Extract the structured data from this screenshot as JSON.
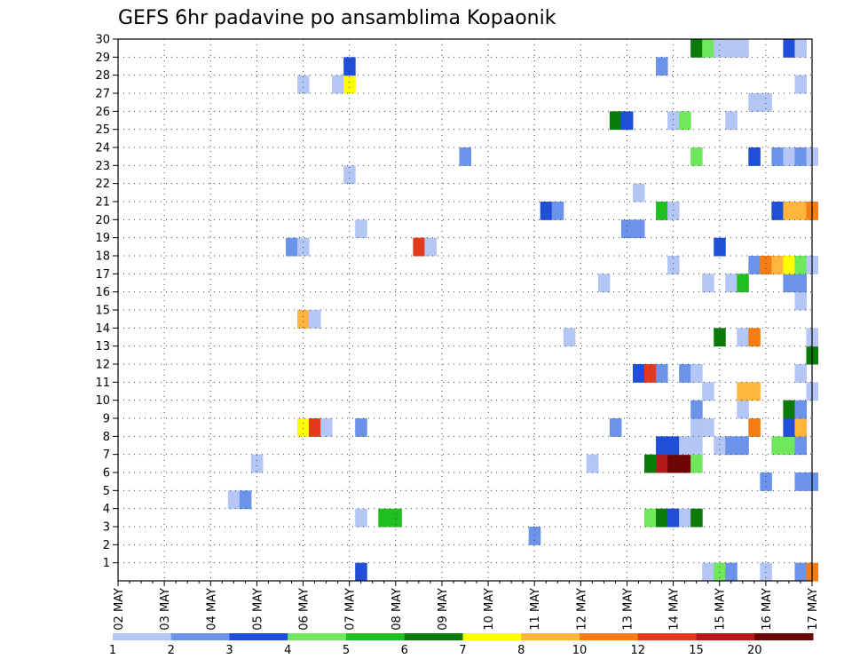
{
  "chart_data": {
    "type": "heatmap",
    "title": "GEFS 6hr padavine po ansamblima Kopaonik",
    "xlabel": "",
    "ylabel": "",
    "x_tick_labels": [
      "02 MAY",
      "03 MAY",
      "04 MAY",
      "05 MAY",
      "06 MAY",
      "07 MAY",
      "08 MAY",
      "09 MAY",
      "10 MAY",
      "11 MAY",
      "12 MAY",
      "13 MAY",
      "14 MAY",
      "15 MAY",
      "16 MAY",
      "17 MAY"
    ],
    "y_tick_labels": [
      "1",
      "2",
      "3",
      "4",
      "5",
      "6",
      "7",
      "8",
      "9",
      "10",
      "11",
      "12",
      "13",
      "14",
      "15",
      "16",
      "17",
      "18",
      "19",
      "20",
      "21",
      "22",
      "23",
      "24",
      "25",
      "26",
      "27",
      "28",
      "29",
      "30"
    ],
    "y_range": [
      0,
      30
    ],
    "grid": true,
    "legend_position": "bottom",
    "legend_labels": [
      "1",
      "2",
      "3",
      "4",
      "5",
      "6",
      "7",
      "8",
      "10",
      "12",
      "15",
      "20"
    ],
    "legend_colors": [
      "#b3c6f5",
      "#6b93ea",
      "#1f4fd8",
      "#6ee85a",
      "#1fbf1f",
      "#0a7a0a",
      "#ffff00",
      "#ffb43c",
      "#f57d14",
      "#e3391c",
      "#b41a1a",
      "#6e0505"
    ],
    "color_bins": [
      1,
      2,
      3,
      4,
      5,
      6,
      7,
      8,
      10,
      12,
      15,
      20
    ],
    "cells": [
      {
        "t": 5.25,
        "m": 0,
        "c": "#1f4fd8"
      },
      {
        "t": 12.75,
        "m": 0,
        "c": "#b3c6f5"
      },
      {
        "t": 13.0,
        "m": 0,
        "c": "#6ee85a"
      },
      {
        "t": 13.25,
        "m": 0,
        "c": "#6b93ea"
      },
      {
        "t": 14.0,
        "m": 0,
        "c": "#b3c6f5"
      },
      {
        "t": 14.75,
        "m": 0,
        "c": "#6b93ea"
      },
      {
        "t": 15.0,
        "m": 0,
        "c": "#f57d14"
      },
      {
        "t": 9.0,
        "m": 2,
        "c": "#6b93ea"
      },
      {
        "t": 5.25,
        "m": 3,
        "c": "#b3c6f5"
      },
      {
        "t": 5.75,
        "m": 3,
        "c": "#1fbf1f"
      },
      {
        "t": 6.0,
        "m": 3,
        "c": "#1fbf1f"
      },
      {
        "t": 11.5,
        "m": 3,
        "c": "#6ee85a"
      },
      {
        "t": 11.75,
        "m": 3,
        "c": "#0a7a0a"
      },
      {
        "t": 12.0,
        "m": 3,
        "c": "#1f4fd8"
      },
      {
        "t": 12.25,
        "m": 3,
        "c": "#b3c6f5"
      },
      {
        "t": 12.5,
        "m": 3,
        "c": "#0a7a0a"
      },
      {
        "t": 2.5,
        "m": 4,
        "c": "#b3c6f5"
      },
      {
        "t": 2.75,
        "m": 4,
        "c": "#6b93ea"
      },
      {
        "t": 14.0,
        "m": 5,
        "c": "#6b93ea"
      },
      {
        "t": 14.75,
        "m": 5,
        "c": "#6b93ea"
      },
      {
        "t": 15.0,
        "m": 5,
        "c": "#6b93ea"
      },
      {
        "t": 3.0,
        "m": 6,
        "c": "#b3c6f5"
      },
      {
        "t": 10.25,
        "m": 6,
        "c": "#b3c6f5"
      },
      {
        "t": 11.5,
        "m": 6,
        "c": "#0a7a0a"
      },
      {
        "t": 11.75,
        "m": 6,
        "c": "#b41a1a"
      },
      {
        "t": 12.0,
        "m": 6,
        "c": "#6e0505"
      },
      {
        "t": 12.25,
        "m": 6,
        "c": "#6e0505"
      },
      {
        "t": 12.5,
        "m": 6,
        "c": "#6ee85a"
      },
      {
        "t": 11.75,
        "m": 7,
        "c": "#1f4fd8"
      },
      {
        "t": 12.0,
        "m": 7,
        "c": "#1f4fd8"
      },
      {
        "t": 12.25,
        "m": 7,
        "c": "#b3c6f5"
      },
      {
        "t": 12.5,
        "m": 7,
        "c": "#b3c6f5"
      },
      {
        "t": 13.0,
        "m": 7,
        "c": "#b3c6f5"
      },
      {
        "t": 13.25,
        "m": 7,
        "c": "#6b93ea"
      },
      {
        "t": 13.5,
        "m": 7,
        "c": "#6b93ea"
      },
      {
        "t": 14.25,
        "m": 7,
        "c": "#6ee85a"
      },
      {
        "t": 14.5,
        "m": 7,
        "c": "#6ee85a"
      },
      {
        "t": 14.75,
        "m": 7,
        "c": "#6b93ea"
      },
      {
        "t": 4.0,
        "m": 8,
        "c": "#ffff00"
      },
      {
        "t": 4.25,
        "m": 8,
        "c": "#e3391c"
      },
      {
        "t": 4.5,
        "m": 8,
        "c": "#b3c6f5"
      },
      {
        "t": 5.25,
        "m": 8,
        "c": "#6b93ea"
      },
      {
        "t": 10.75,
        "m": 8,
        "c": "#6b93ea"
      },
      {
        "t": 12.5,
        "m": 8,
        "c": "#b3c6f5"
      },
      {
        "t": 12.75,
        "m": 8,
        "c": "#b3c6f5"
      },
      {
        "t": 13.75,
        "m": 8,
        "c": "#f57d14"
      },
      {
        "t": 14.5,
        "m": 8,
        "c": "#1f4fd8"
      },
      {
        "t": 14.75,
        "m": 8,
        "c": "#ffb43c"
      },
      {
        "t": 12.5,
        "m": 9,
        "c": "#6b93ea"
      },
      {
        "t": 13.5,
        "m": 9,
        "c": "#b3c6f5"
      },
      {
        "t": 14.5,
        "m": 9,
        "c": "#0a7a0a"
      },
      {
        "t": 14.75,
        "m": 9,
        "c": "#6b93ea"
      },
      {
        "t": 12.75,
        "m": 10,
        "c": "#b3c6f5"
      },
      {
        "t": 13.5,
        "m": 10,
        "c": "#ffb43c"
      },
      {
        "t": 13.75,
        "m": 10,
        "c": "#ffb43c"
      },
      {
        "t": 15.0,
        "m": 10,
        "c": "#b3c6f5"
      },
      {
        "t": 11.25,
        "m": 11,
        "c": "#1f4fd8"
      },
      {
        "t": 11.5,
        "m": 11,
        "c": "#e3391c"
      },
      {
        "t": 11.75,
        "m": 11,
        "c": "#6b93ea"
      },
      {
        "t": 12.25,
        "m": 11,
        "c": "#6b93ea"
      },
      {
        "t": 12.5,
        "m": 11,
        "c": "#b3c6f5"
      },
      {
        "t": 14.75,
        "m": 11,
        "c": "#b3c6f5"
      },
      {
        "t": 15.0,
        "m": 12,
        "c": "#0a7a0a"
      },
      {
        "t": 9.75,
        "m": 13,
        "c": "#b3c6f5"
      },
      {
        "t": 13.0,
        "m": 13,
        "c": "#0a7a0a"
      },
      {
        "t": 13.5,
        "m": 13,
        "c": "#b3c6f5"
      },
      {
        "t": 13.75,
        "m": 13,
        "c": "#f57d14"
      },
      {
        "t": 15.0,
        "m": 13,
        "c": "#b3c6f5"
      },
      {
        "t": 4.0,
        "m": 14,
        "c": "#ffb43c"
      },
      {
        "t": 4.25,
        "m": 14,
        "c": "#b3c6f5"
      },
      {
        "t": 14.75,
        "m": 15,
        "c": "#b3c6f5"
      },
      {
        "t": 10.5,
        "m": 16,
        "c": "#b3c6f5"
      },
      {
        "t": 12.75,
        "m": 16,
        "c": "#b3c6f5"
      },
      {
        "t": 13.25,
        "m": 16,
        "c": "#b3c6f5"
      },
      {
        "t": 13.5,
        "m": 16,
        "c": "#1fbf1f"
      },
      {
        "t": 14.5,
        "m": 16,
        "c": "#6b93ea"
      },
      {
        "t": 14.75,
        "m": 16,
        "c": "#6b93ea"
      },
      {
        "t": 12.0,
        "m": 17,
        "c": "#b3c6f5"
      },
      {
        "t": 13.75,
        "m": 17,
        "c": "#6b93ea"
      },
      {
        "t": 14.0,
        "m": 17,
        "c": "#f57d14"
      },
      {
        "t": 14.25,
        "m": 17,
        "c": "#ffb43c"
      },
      {
        "t": 14.5,
        "m": 17,
        "c": "#ffff00"
      },
      {
        "t": 14.75,
        "m": 17,
        "c": "#6ee85a"
      },
      {
        "t": 15.0,
        "m": 17,
        "c": "#b3c6f5"
      },
      {
        "t": 3.75,
        "m": 18,
        "c": "#6b93ea"
      },
      {
        "t": 4.0,
        "m": 18,
        "c": "#b3c6f5"
      },
      {
        "t": 6.5,
        "m": 18,
        "c": "#e3391c"
      },
      {
        "t": 6.75,
        "m": 18,
        "c": "#b3c6f5"
      },
      {
        "t": 13.0,
        "m": 18,
        "c": "#1f4fd8"
      },
      {
        "t": 5.25,
        "m": 19,
        "c": "#b3c6f5"
      },
      {
        "t": 11.0,
        "m": 19,
        "c": "#6b93ea"
      },
      {
        "t": 11.25,
        "m": 19,
        "c": "#6b93ea"
      },
      {
        "t": 9.25,
        "m": 20,
        "c": "#1f4fd8"
      },
      {
        "t": 9.5,
        "m": 20,
        "c": "#6b93ea"
      },
      {
        "t": 11.75,
        "m": 20,
        "c": "#1fbf1f"
      },
      {
        "t": 12.0,
        "m": 20,
        "c": "#b3c6f5"
      },
      {
        "t": 14.25,
        "m": 20,
        "c": "#1f4fd8"
      },
      {
        "t": 14.5,
        "m": 20,
        "c": "#ffb43c"
      },
      {
        "t": 14.75,
        "m": 20,
        "c": "#ffb43c"
      },
      {
        "t": 15.0,
        "m": 20,
        "c": "#f57d14"
      },
      {
        "t": 11.25,
        "m": 21,
        "c": "#b3c6f5"
      },
      {
        "t": 5.0,
        "m": 22,
        "c": "#b3c6f5"
      },
      {
        "t": 7.5,
        "m": 23,
        "c": "#6b93ea"
      },
      {
        "t": 12.5,
        "m": 23,
        "c": "#6ee85a"
      },
      {
        "t": 13.75,
        "m": 23,
        "c": "#1f4fd8"
      },
      {
        "t": 14.25,
        "m": 23,
        "c": "#6b93ea"
      },
      {
        "t": 14.5,
        "m": 23,
        "c": "#b3c6f5"
      },
      {
        "t": 14.75,
        "m": 23,
        "c": "#6b93ea"
      },
      {
        "t": 15.0,
        "m": 23,
        "c": "#b3c6f5"
      },
      {
        "t": 10.75,
        "m": 25,
        "c": "#0a7a0a"
      },
      {
        "t": 11.0,
        "m": 25,
        "c": "#1f4fd8"
      },
      {
        "t": 12.0,
        "m": 25,
        "c": "#b3c6f5"
      },
      {
        "t": 12.25,
        "m": 25,
        "c": "#6ee85a"
      },
      {
        "t": 13.25,
        "m": 25,
        "c": "#b3c6f5"
      },
      {
        "t": 13.75,
        "m": 26,
        "c": "#b3c6f5"
      },
      {
        "t": 14.0,
        "m": 26,
        "c": "#b3c6f5"
      },
      {
        "t": 4.0,
        "m": 27,
        "c": "#b3c6f5"
      },
      {
        "t": 4.75,
        "m": 27,
        "c": "#b3c6f5"
      },
      {
        "t": 5.0,
        "m": 27,
        "c": "#ffff00"
      },
      {
        "t": 14.75,
        "m": 27,
        "c": "#b3c6f5"
      },
      {
        "t": 5.0,
        "m": 28,
        "c": "#1f4fd8"
      },
      {
        "t": 11.75,
        "m": 28,
        "c": "#6b93ea"
      },
      {
        "t": 12.5,
        "m": 29,
        "c": "#0a7a0a"
      },
      {
        "t": 12.75,
        "m": 29,
        "c": "#6ee85a"
      },
      {
        "t": 13.0,
        "m": 29,
        "c": "#b3c6f5"
      },
      {
        "t": 13.25,
        "m": 29,
        "c": "#b3c6f5"
      },
      {
        "t": 13.5,
        "m": 29,
        "c": "#b3c6f5"
      },
      {
        "t": 14.5,
        "m": 29,
        "c": "#1f4fd8"
      },
      {
        "t": 14.75,
        "m": 29,
        "c": "#b3c6f5"
      }
    ]
  }
}
